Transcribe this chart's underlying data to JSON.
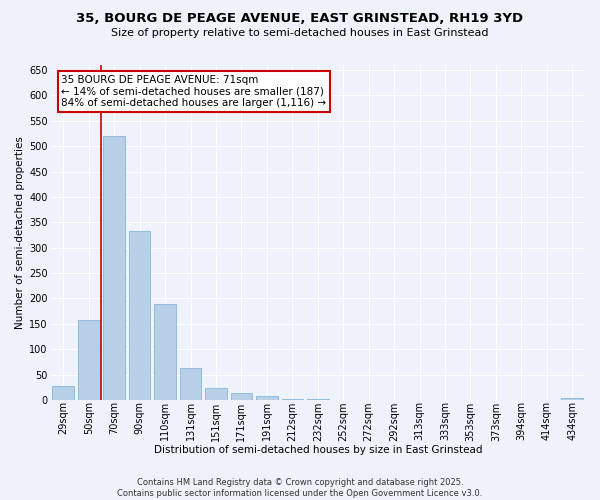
{
  "title_line1": "35, BOURG DE PEAGE AVENUE, EAST GRINSTEAD, RH19 3YD",
  "title_line2": "Size of property relative to semi-detached houses in East Grinstead",
  "bar_labels": [
    "29sqm",
    "50sqm",
    "70sqm",
    "90sqm",
    "110sqm",
    "131sqm",
    "151sqm",
    "171sqm",
    "191sqm",
    "212sqm",
    "232sqm",
    "252sqm",
    "272sqm",
    "292sqm",
    "313sqm",
    "333sqm",
    "353sqm",
    "373sqm",
    "394sqm",
    "414sqm",
    "434sqm"
  ],
  "bar_values": [
    28,
    158,
    520,
    332,
    190,
    62,
    23,
    13,
    8,
    2,
    1,
    0,
    0,
    0,
    0,
    0,
    0,
    0,
    0,
    0,
    3
  ],
  "bar_color": "#b8cfe8",
  "bar_edge_color": "#7aadd4",
  "highlight_line_color": "#cc0000",
  "xlabel": "Distribution of semi-detached houses by size in East Grinstead",
  "ylabel": "Number of semi-detached properties",
  "ylim": [
    0,
    660
  ],
  "yticks": [
    0,
    50,
    100,
    150,
    200,
    250,
    300,
    350,
    400,
    450,
    500,
    550,
    600,
    650
  ],
  "annotation_title": "35 BOURG DE PEAGE AVENUE: 71sqm",
  "annotation_line1": "← 14% of semi-detached houses are smaller (187)",
  "annotation_line2": "84% of semi-detached houses are larger (1,116) →",
  "annotation_box_color": "#ffffff",
  "annotation_box_edge": "#cc0000",
  "footnote1": "Contains HM Land Registry data © Crown copyright and database right 2025.",
  "footnote2": "Contains public sector information licensed under the Open Government Licence v3.0.",
  "background_color": "#eef2fa",
  "grid_color": "#ffffff",
  "property_line_x": 1.5,
  "title_fontsize": 9.5,
  "subtitle_fontsize": 8,
  "axis_label_fontsize": 7.5,
  "tick_fontsize": 7,
  "annot_fontsize": 7.5,
  "footnote_fontsize": 6
}
